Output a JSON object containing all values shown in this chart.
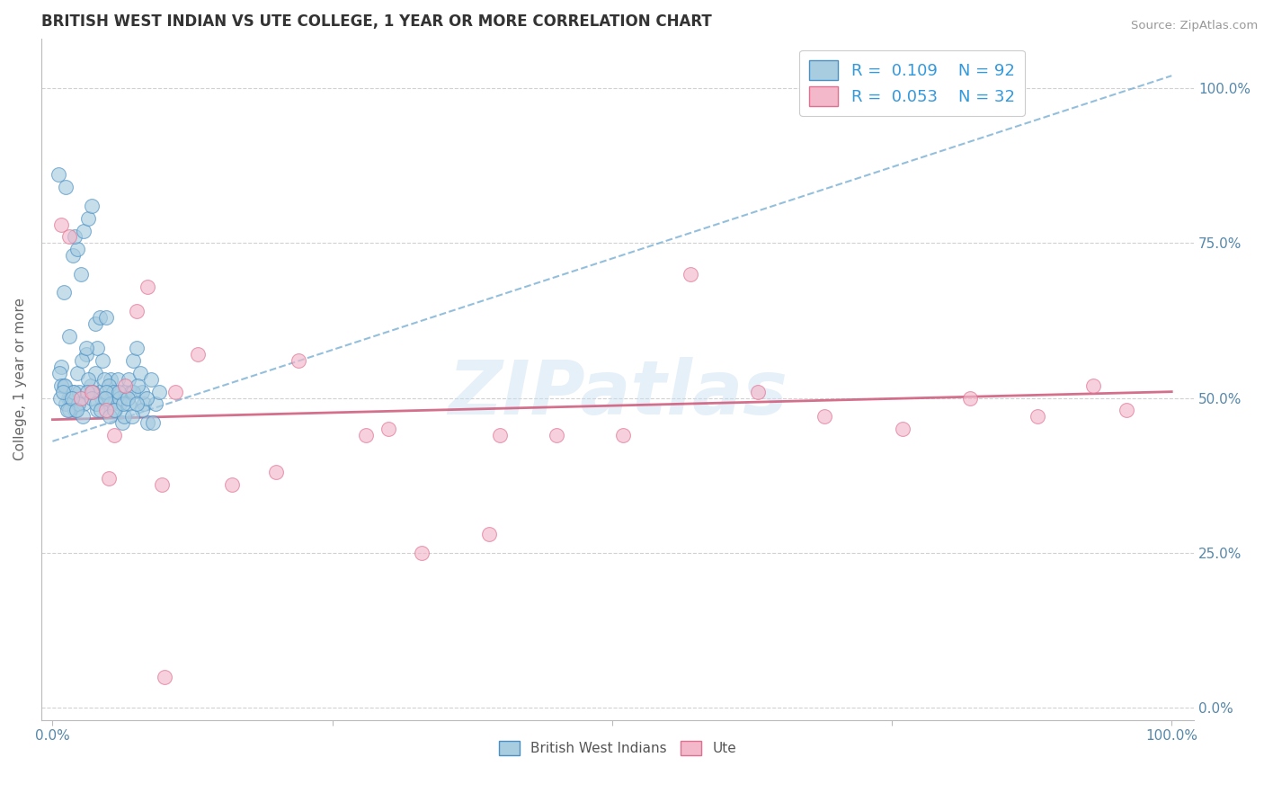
{
  "title": "BRITISH WEST INDIAN VS UTE COLLEGE, 1 YEAR OR MORE CORRELATION CHART",
  "source_text": "Source: ZipAtlas.com",
  "ylabel": "College, 1 year or more",
  "watermark": "ZIPatlas",
  "legend_r1": "R =  0.109",
  "legend_n1": "N = 92",
  "legend_r2": "R =  0.053",
  "legend_n2": "N = 32",
  "xlim": [
    -0.01,
    1.02
  ],
  "ylim": [
    -0.02,
    1.08
  ],
  "xticks": [
    0.0,
    0.25,
    0.5,
    0.75,
    1.0
  ],
  "yticks": [
    0.0,
    0.25,
    0.5,
    0.75,
    1.0
  ],
  "xticklabels": [
    "0.0%",
    "",
    "",
    "",
    "100.0%"
  ],
  "yticklabels_right": [
    "0.0%",
    "25.0%",
    "50.0%",
    "75.0%",
    "100.0%"
  ],
  "color_blue": "#a8cce0",
  "color_pink": "#f4b8cb",
  "color_blue_line": "#4a90c4",
  "color_pink_line": "#e07090",
  "background_color": "#ffffff",
  "grid_color": "#cccccc",
  "blue_scatter_x": [
    0.005,
    0.012,
    0.008,
    0.015,
    0.01,
    0.018,
    0.022,
    0.025,
    0.02,
    0.028,
    0.032,
    0.035,
    0.03,
    0.038,
    0.042,
    0.045,
    0.04,
    0.048,
    0.052,
    0.055,
    0.05,
    0.058,
    0.062,
    0.065,
    0.06,
    0.068,
    0.072,
    0.075,
    0.07,
    0.078,
    0.082,
    0.085,
    0.08,
    0.088,
    0.092,
    0.095,
    0.09,
    0.006,
    0.01,
    0.014,
    0.018,
    0.022,
    0.026,
    0.03,
    0.034,
    0.038,
    0.042,
    0.046,
    0.05,
    0.054,
    0.008,
    0.012,
    0.016,
    0.02,
    0.024,
    0.028,
    0.032,
    0.036,
    0.04,
    0.044,
    0.048,
    0.052,
    0.056,
    0.06,
    0.064,
    0.068,
    0.072,
    0.076,
    0.08,
    0.084,
    0.007,
    0.011,
    0.015,
    0.019,
    0.023,
    0.027,
    0.031,
    0.035,
    0.039,
    0.043,
    0.047,
    0.051,
    0.055,
    0.059,
    0.063,
    0.067,
    0.071,
    0.075,
    0.009,
    0.013,
    0.017,
    0.021
  ],
  "blue_scatter_y": [
    0.86,
    0.84,
    0.55,
    0.6,
    0.67,
    0.73,
    0.74,
    0.7,
    0.76,
    0.77,
    0.79,
    0.81,
    0.57,
    0.62,
    0.63,
    0.56,
    0.58,
    0.63,
    0.53,
    0.51,
    0.49,
    0.53,
    0.46,
    0.51,
    0.49,
    0.53,
    0.56,
    0.58,
    0.51,
    0.54,
    0.49,
    0.46,
    0.51,
    0.53,
    0.49,
    0.51,
    0.46,
    0.54,
    0.52,
    0.5,
    0.51,
    0.54,
    0.56,
    0.58,
    0.52,
    0.54,
    0.51,
    0.53,
    0.52,
    0.51,
    0.52,
    0.49,
    0.5,
    0.48,
    0.51,
    0.49,
    0.53,
    0.51,
    0.48,
    0.5,
    0.51,
    0.49,
    0.48,
    0.5,
    0.47,
    0.49,
    0.51,
    0.52,
    0.48,
    0.5,
    0.5,
    0.52,
    0.48,
    0.51,
    0.49,
    0.47,
    0.51,
    0.5,
    0.49,
    0.48,
    0.5,
    0.47,
    0.48,
    0.51,
    0.49,
    0.5,
    0.47,
    0.49,
    0.51,
    0.48,
    0.5,
    0.48
  ],
  "pink_scatter_x": [
    0.008,
    0.015,
    0.025,
    0.035,
    0.048,
    0.055,
    0.065,
    0.075,
    0.085,
    0.098,
    0.11,
    0.13,
    0.16,
    0.22,
    0.28,
    0.33,
    0.39,
    0.45,
    0.51,
    0.57,
    0.63,
    0.69,
    0.76,
    0.82,
    0.88,
    0.93,
    0.96,
    0.05,
    0.1,
    0.2,
    0.3,
    0.4
  ],
  "pink_scatter_y": [
    0.78,
    0.76,
    0.5,
    0.51,
    0.48,
    0.44,
    0.52,
    0.64,
    0.68,
    0.36,
    0.51,
    0.57,
    0.36,
    0.56,
    0.44,
    0.25,
    0.28,
    0.44,
    0.44,
    0.7,
    0.51,
    0.47,
    0.45,
    0.5,
    0.47,
    0.52,
    0.48,
    0.37,
    0.05,
    0.38,
    0.45,
    0.44
  ],
  "blue_trend_x": [
    0.0,
    1.0
  ],
  "blue_trend_y": [
    0.43,
    1.02
  ],
  "pink_trend_x": [
    0.0,
    1.0
  ],
  "pink_trend_y": [
    0.465,
    0.51
  ],
  "title_fontsize": 12,
  "label_fontsize": 11,
  "tick_fontsize": 11,
  "legend_fontsize": 13,
  "watermark_fontsize": 60,
  "watermark_color": "#c8dff0",
  "watermark_alpha": 0.45,
  "legend1_label": "British West Indians",
  "legend2_label": "Ute"
}
